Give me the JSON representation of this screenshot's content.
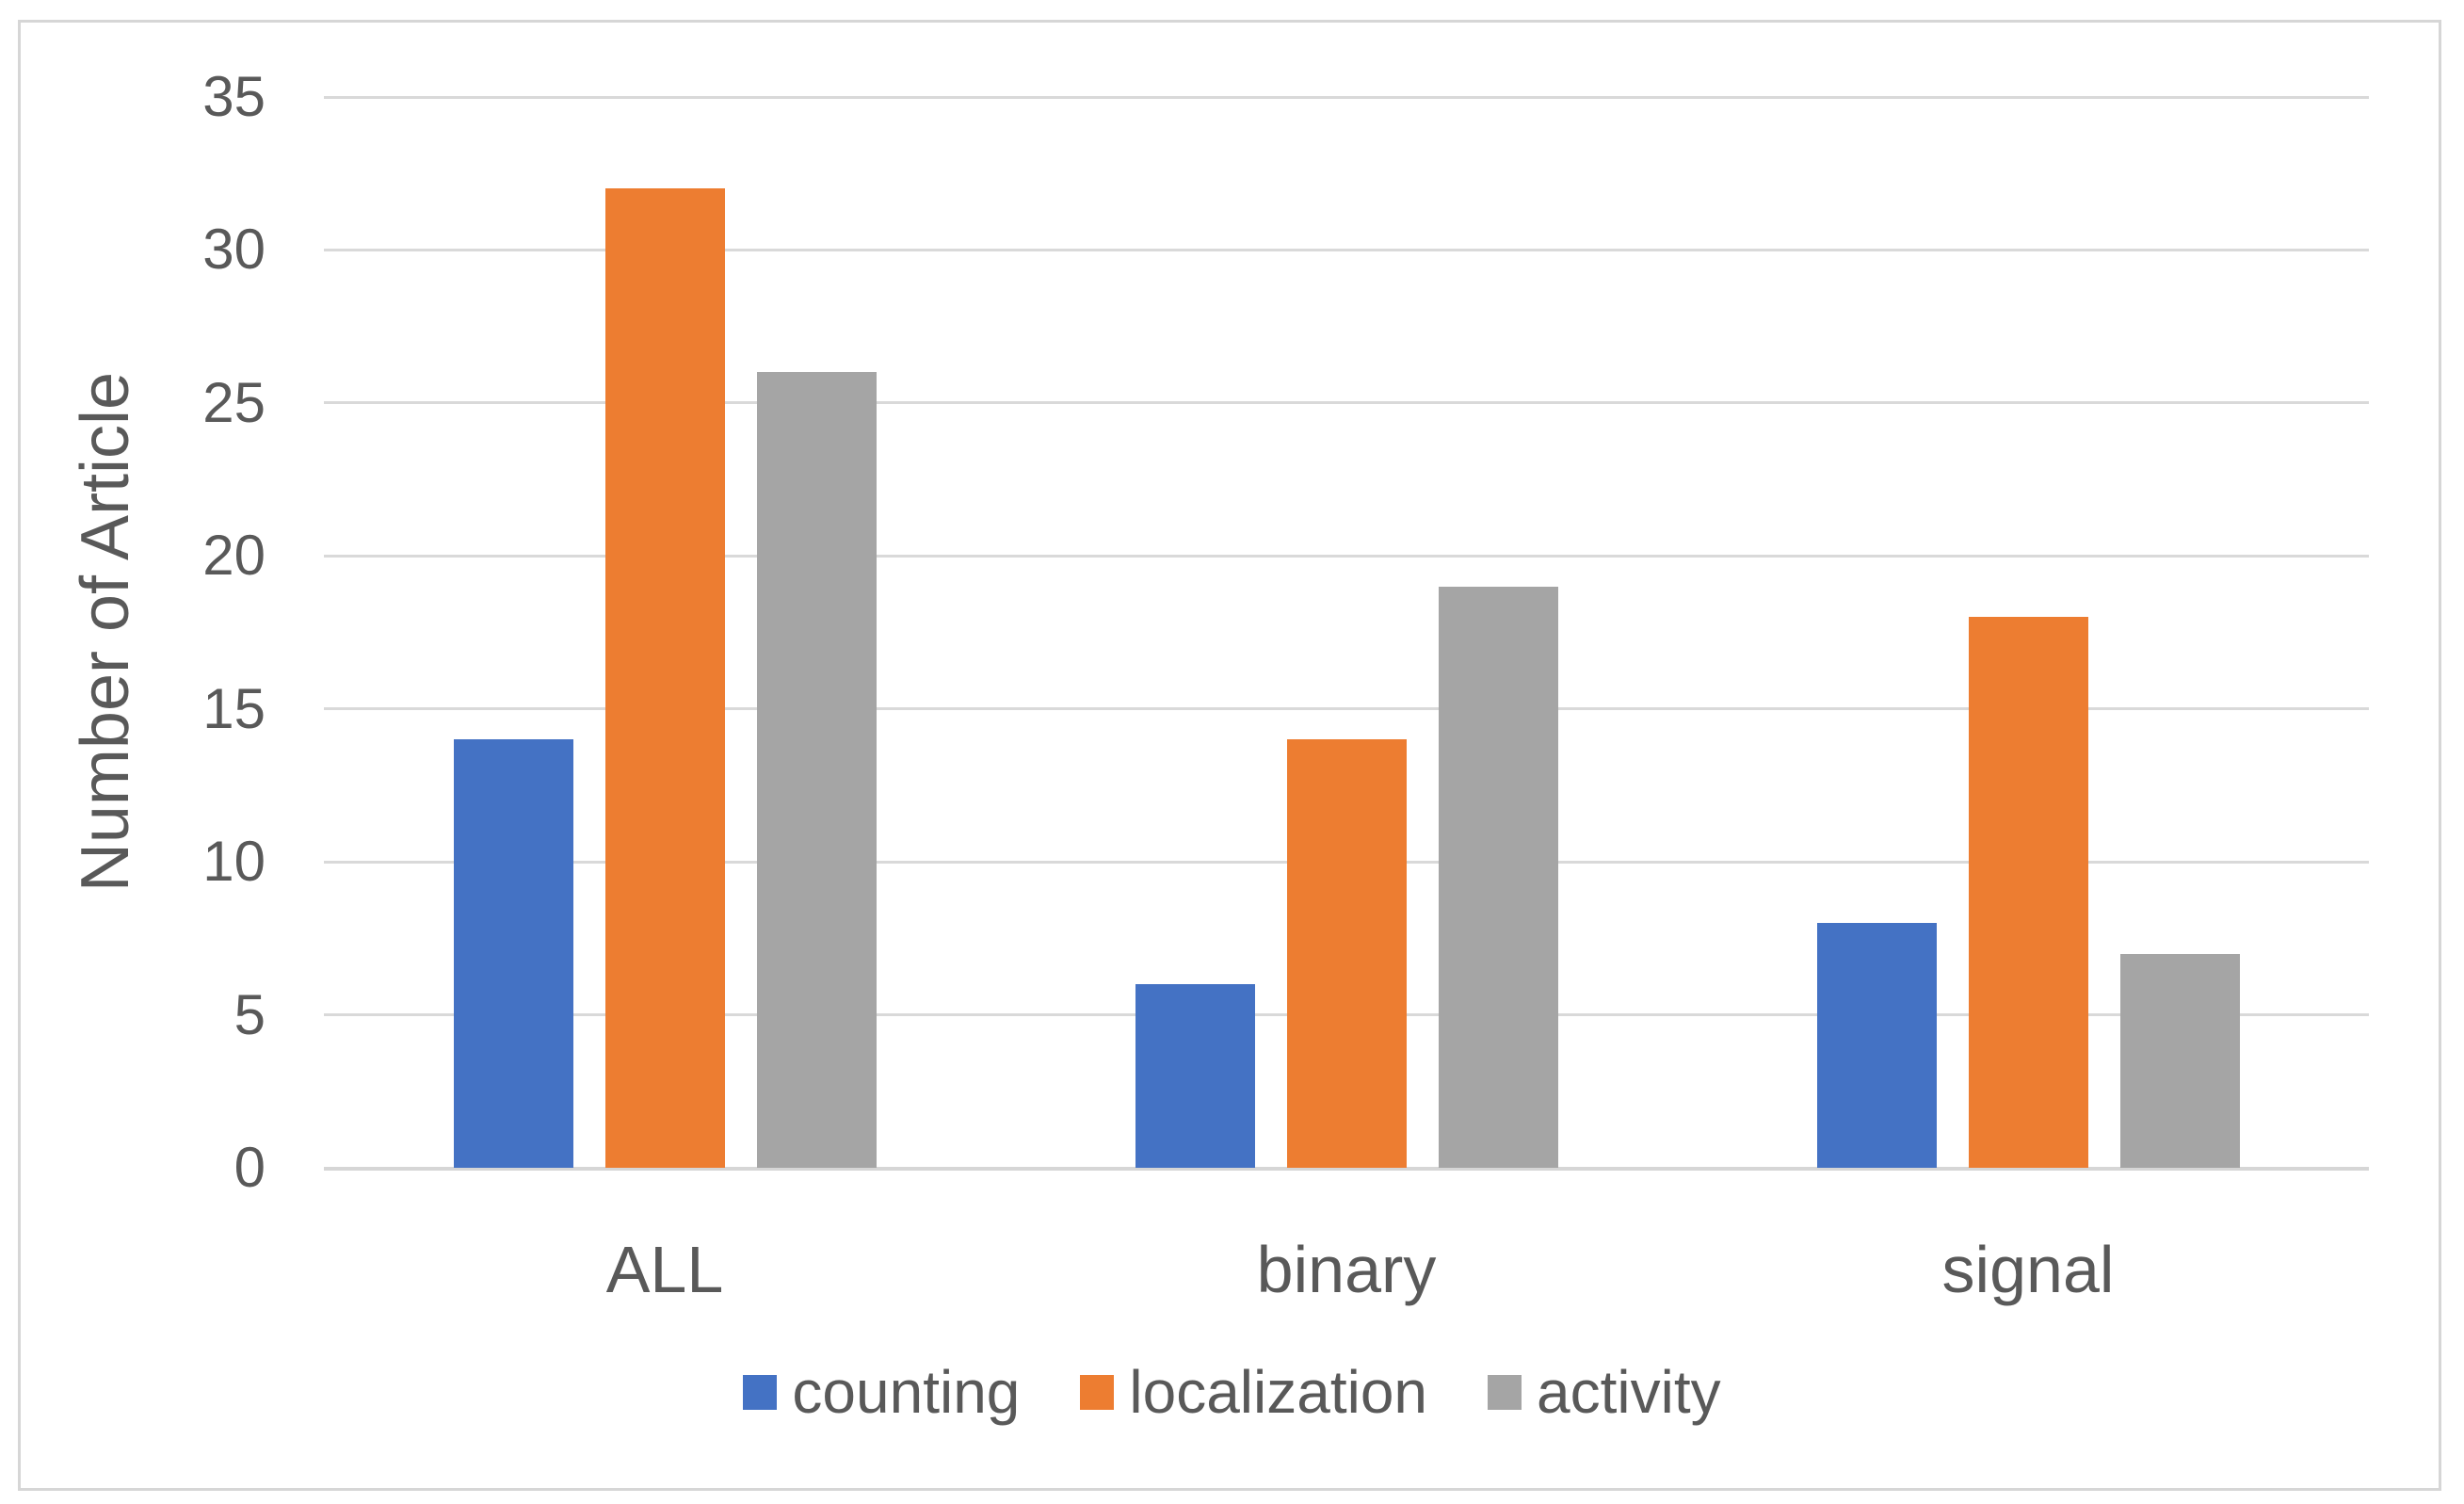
{
  "chart_data": {
    "type": "bar",
    "title": "",
    "categories": [
      "ALL",
      "binary",
      "signal"
    ],
    "series": [
      {
        "name": "counting",
        "color": "#4472C4",
        "values": [
          14,
          6,
          8
        ]
      },
      {
        "name": "localization",
        "color": "#ED7D31",
        "values": [
          32,
          14,
          18
        ]
      },
      {
        "name": "activity",
        "color": "#A5A5A5",
        "values": [
          26,
          19,
          7
        ]
      }
    ],
    "xlabel": "",
    "ylabel": "Number of Article",
    "ylim": [
      0,
      35
    ],
    "ytick_step": 5,
    "y_tick_labels": [
      "0",
      "5",
      "10",
      "15",
      "20",
      "25",
      "30",
      "35"
    ],
    "grid": true,
    "legend_position": "bottom",
    "legend": [
      "counting",
      "localization",
      "activity"
    ],
    "colors": {
      "text": "#595959",
      "gridline": "#D9D9D9",
      "axis_line": "#D6D6D6",
      "background": "#FFFFFF",
      "frame_border": "#D6D6D6"
    }
  }
}
